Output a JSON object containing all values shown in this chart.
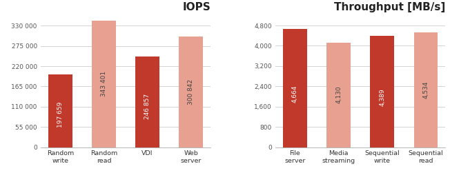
{
  "iops": {
    "title": "IOPS",
    "categories": [
      "Random\nwrite",
      "Random\nread",
      "VDI",
      "Web\nserver"
    ],
    "values": [
      197659,
      343401,
      246857,
      300842
    ],
    "labels": [
      "197 659",
      "343 401",
      "246 857",
      "300 842"
    ],
    "colors": [
      "#c0392b",
      "#e8a090",
      "#c0392b",
      "#e8a090"
    ],
    "ylim": [
      0,
      365000
    ],
    "yticks": [
      0,
      55000,
      110000,
      165000,
      220000,
      275000,
      330000
    ],
    "ytick_labels": [
      "0",
      "55 000",
      "110 000",
      "165 000",
      "220 000",
      "275 000",
      "330 000"
    ]
  },
  "throughput": {
    "title": "Throughput [MB/s]",
    "categories": [
      "File\nserver",
      "Media\nstreaming",
      "Sequential\nwrite",
      "Sequential\nread"
    ],
    "values": [
      4664,
      4130,
      4389,
      4534
    ],
    "labels": [
      "4,664",
      "4,130",
      "4,389",
      "4,534"
    ],
    "colors": [
      "#c0392b",
      "#e8a090",
      "#c0392b",
      "#e8a090"
    ],
    "ylim": [
      0,
      5300
    ],
    "yticks": [
      0,
      800,
      1600,
      2400,
      3200,
      4000,
      4800
    ],
    "ytick_labels": [
      "0",
      "800",
      "1,600",
      "2,400",
      "3,200",
      "4,000",
      "4,800"
    ]
  },
  "background_color": "#ffffff",
  "bar_label_fontsize": 6.5,
  "tick_fontsize": 6.5,
  "title_fontsize": 11,
  "cat_fontsize": 6.8
}
